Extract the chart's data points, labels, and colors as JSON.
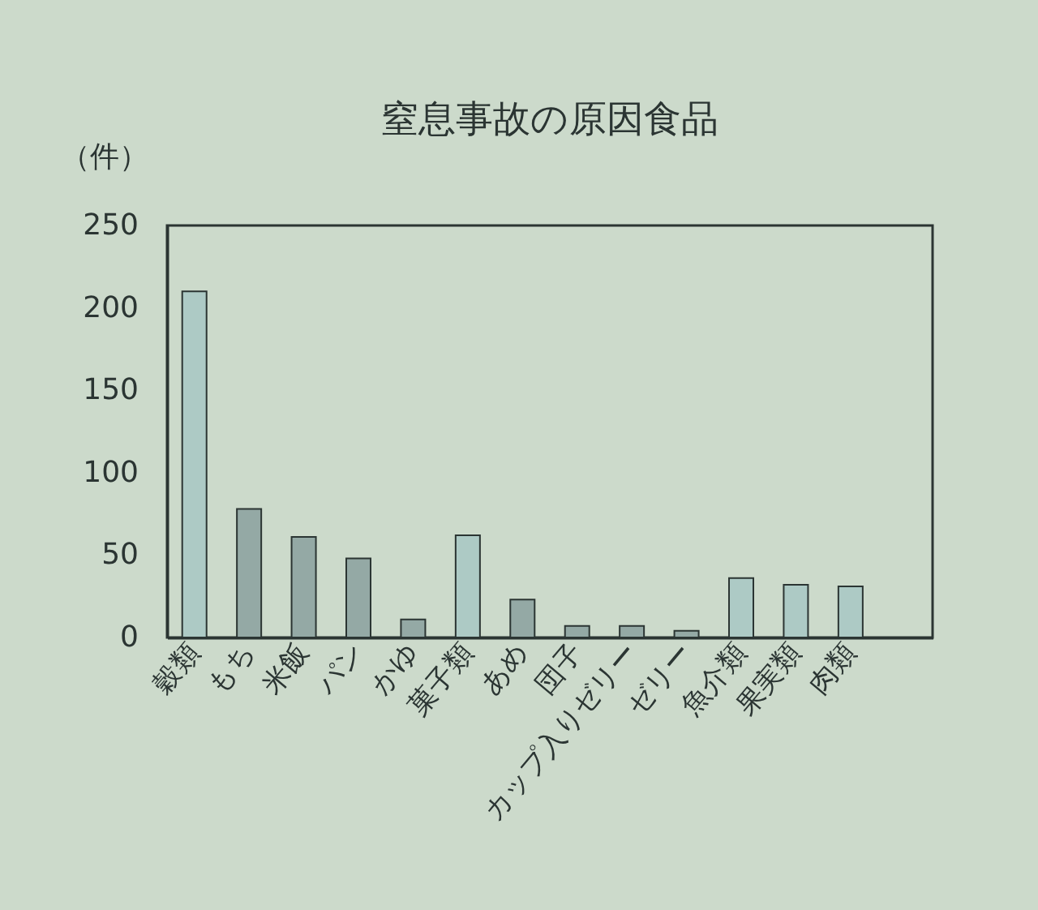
{
  "chart_data": {
    "type": "bar",
    "title": "窒息事故の原因食品",
    "ylabel": "（件）",
    "categories": [
      "穀類",
      "もち",
      "米飯",
      "パン",
      "かゆ",
      "菓子類",
      "あめ",
      "団子",
      "カップ入りゼリー",
      "ゼリー",
      "魚介類",
      "果実類",
      "肉類",
      null
    ],
    "values": [
      210,
      78,
      61,
      48,
      11,
      62,
      23,
      7,
      7,
      4,
      36,
      32,
      31,
      null
    ],
    "colors": [
      "#adcac5",
      "#94a9a5",
      "#94a9a5",
      "#94a9a5",
      "#94a9a5",
      "#adcac5",
      "#94a9a5",
      "#94a9a5",
      "#94a9a5",
      "#94a9a5",
      "#adcac5",
      "#adcac5",
      "#adcac5",
      null
    ],
    "ylim": [
      0,
      250
    ],
    "yticks": [
      0,
      50,
      100,
      150,
      200,
      250
    ],
    "grid": false
  }
}
